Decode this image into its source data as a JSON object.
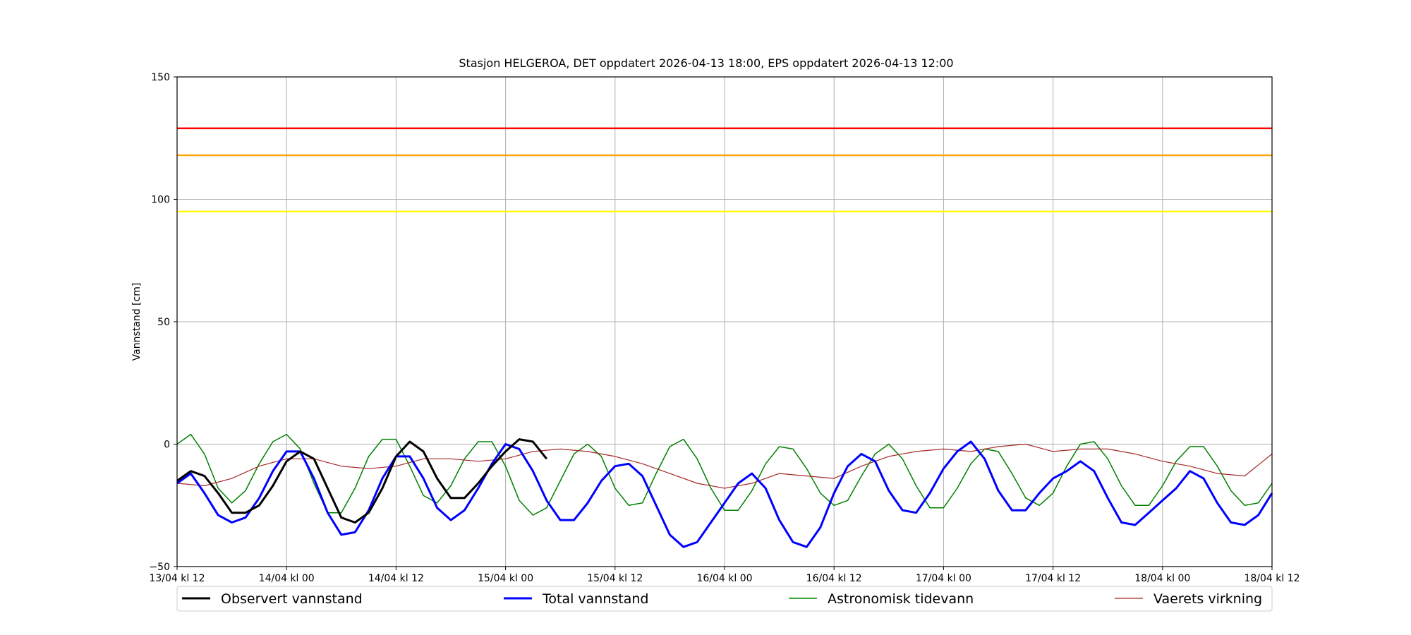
{
  "chart_data": {
    "type": "line",
    "title": "Stasjon HELGEROA, DET oppdatert 2026-04-13 18:00, EPS oppdatert 2026-04-13 12:00",
    "xlabel": "",
    "ylabel": "Vannstand [cm]",
    "xlim": [
      0,
      120
    ],
    "ylim": [
      -50,
      150
    ],
    "grid": true,
    "legend_placement": "bottom",
    "x_tick_values": [
      0,
      12,
      24,
      36,
      48,
      60,
      72,
      84,
      96,
      108,
      120
    ],
    "x_tick_labels": [
      "13/04 kl 12",
      "14/04 kl 00",
      "14/04 kl 12",
      "15/04 kl 00",
      "15/04 kl 12",
      "16/04 kl 00",
      "16/04 kl 12",
      "17/04 kl 00",
      "17/04 kl 12",
      "18/04 kl 00",
      "18/04 kl 12"
    ],
    "y_ticks": [
      -50,
      0,
      50,
      100,
      150
    ],
    "threshold_lines": [
      {
        "value": 129,
        "color": "#ff0000"
      },
      {
        "value": 118,
        "color": "#ffa500"
      },
      {
        "value": 95,
        "color": "#ffff00"
      }
    ],
    "series": [
      {
        "name": "Observert vannstand",
        "color": "#000000",
        "x": [
          0,
          1.5,
          3,
          4.5,
          6,
          7.5,
          9,
          10.5,
          12,
          13.5,
          15,
          16.5,
          18,
          19.5,
          21,
          22.5,
          24,
          25.5,
          27,
          28.5,
          30,
          31.5,
          33,
          34.5,
          36,
          37.5,
          39,
          40.5
        ],
        "y": [
          -15,
          -11,
          -13,
          -20,
          -28,
          -28,
          -25,
          -17,
          -7,
          -3,
          -6,
          -18,
          -30,
          -32,
          -28,
          -18,
          -5,
          1,
          -3,
          -14,
          -22,
          -22,
          -16,
          -9,
          -3,
          2,
          1,
          -6
        ]
      },
      {
        "name": "Total vannstand",
        "color": "#0000ff",
        "x": [
          0,
          1.5,
          3,
          4.5,
          6,
          7.5,
          9,
          10.5,
          12,
          13.5,
          15,
          16.5,
          18,
          19.5,
          21,
          22.5,
          24,
          25.5,
          27,
          28.5,
          30,
          31.5,
          33,
          34.5,
          36,
          37.5,
          39,
          40.5,
          42,
          43.5,
          45,
          46.5,
          48,
          49.5,
          51,
          52.5,
          54,
          55.5,
          57,
          58.5,
          60,
          61.5,
          63,
          64.5,
          66,
          67.5,
          69,
          70.5,
          72,
          73.5,
          75,
          76.5,
          78,
          79.5,
          81,
          82.5,
          84,
          85.5,
          87,
          88.5,
          90,
          91.5,
          93,
          94.5,
          96,
          97.5,
          99,
          100.5,
          102,
          103.5,
          105,
          106.5,
          108,
          109.5,
          111,
          112.5,
          114,
          115.5,
          117,
          118.5,
          120
        ],
        "y": [
          -16,
          -12,
          -20,
          -29,
          -32,
          -30,
          -22,
          -11,
          -3,
          -3,
          -14,
          -28,
          -37,
          -36,
          -27,
          -14,
          -5,
          -5,
          -14,
          -26,
          -31,
          -27,
          -18,
          -8,
          0,
          -2,
          -11,
          -23,
          -31,
          -31,
          -24,
          -15,
          -9,
          -8,
          -13,
          -25,
          -37,
          -42,
          -40,
          -32,
          -24,
          -16,
          -12,
          -18,
          -31,
          -40,
          -42,
          -34,
          -20,
          -9,
          -4,
          -7,
          -19,
          -27,
          -28,
          -20,
          -10,
          -3,
          1,
          -6,
          -19,
          -27,
          -27,
          -20,
          -14,
          -11,
          -7,
          -11,
          -22,
          -32,
          -33,
          -28,
          -23,
          -18,
          -11,
          -14,
          -24,
          -32,
          -33,
          -29,
          -20
        ]
      },
      {
        "name": "Astronomisk tidevann",
        "color": "#008000",
        "x": [
          0,
          1.5,
          3,
          4.5,
          6,
          7.5,
          9,
          10.5,
          12,
          13.5,
          15,
          16.5,
          18,
          19.5,
          21,
          22.5,
          24,
          25.5,
          27,
          28.5,
          30,
          31.5,
          33,
          34.5,
          36,
          37.5,
          39,
          40.5,
          42,
          43.5,
          45,
          46.5,
          48,
          49.5,
          51,
          52.5,
          54,
          55.5,
          57,
          58.5,
          60,
          61.5,
          63,
          64.5,
          66,
          67.5,
          69,
          70.5,
          72,
          73.5,
          75,
          76.5,
          78,
          79.5,
          81,
          82.5,
          84,
          85.5,
          87,
          88.5,
          90,
          91.5,
          93,
          94.5,
          96,
          97.5,
          99,
          100.5,
          102,
          103.5,
          105,
          106.5,
          108,
          109.5,
          111,
          112.5,
          114,
          115.5,
          117,
          118.5,
          120
        ],
        "y": [
          0,
          4,
          -4,
          -18,
          -24,
          -19,
          -8,
          1,
          4,
          -2,
          -16,
          -28,
          -28,
          -18,
          -5,
          2,
          2,
          -9,
          -21,
          -24,
          -17,
          -6,
          1,
          1,
          -9,
          -23,
          -29,
          -26,
          -15,
          -4,
          0,
          -5,
          -18,
          -25,
          -24,
          -12,
          -1,
          2,
          -6,
          -18,
          -27,
          -27,
          -19,
          -8,
          -1,
          -2,
          -10,
          -20,
          -25,
          -23,
          -13,
          -4,
          0,
          -6,
          -17,
          -26,
          -26,
          -18,
          -8,
          -2,
          -3,
          -12,
          -22,
          -25,
          -20,
          -9,
          0,
          1,
          -6,
          -17,
          -25,
          -25,
          -17,
          -7,
          -1,
          -1,
          -9,
          -19,
          -25,
          -24,
          -16
        ]
      },
      {
        "name": "Vaerets virkning",
        "color": "#a52a2a",
        "x": [
          0,
          3,
          6,
          9,
          12,
          15,
          18,
          21,
          24,
          27,
          30,
          33,
          36,
          39,
          42,
          45,
          48,
          51,
          54,
          57,
          60,
          63,
          66,
          69,
          72,
          75,
          78,
          81,
          84,
          87,
          90,
          93,
          96,
          99,
          102,
          105,
          108,
          111,
          114,
          117,
          120
        ],
        "y": [
          -16,
          -17,
          -14,
          -9,
          -6,
          -6,
          -9,
          -10,
          -9,
          -6,
          -6,
          -7,
          -6,
          -3,
          -2,
          -3,
          -5,
          -8,
          -12,
          -16,
          -18,
          -16,
          -12,
          -13,
          -14,
          -9,
          -5,
          -3,
          -2,
          -3,
          -1,
          0,
          -3,
          -2,
          -2,
          -4,
          -7,
          -9,
          -12,
          -13,
          -4
        ]
      }
    ]
  }
}
